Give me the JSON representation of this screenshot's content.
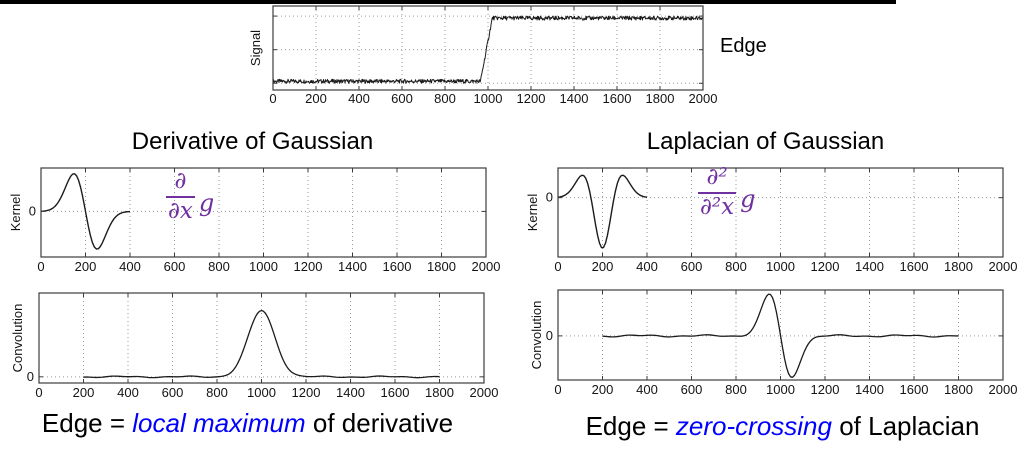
{
  "palette": {
    "curve": "#1c1c1c",
    "grid": "#9a9a9a",
    "frame": "#3c3c3c",
    "tick_text": "#141414",
    "formula": "#7030A0",
    "highlight": "#0000FF"
  },
  "top_rule": {
    "color": "#000000"
  },
  "signal_panel": {
    "edge_label": "Edge"
  },
  "titles": {
    "left": "Derivative of Gaussian",
    "right": "Laplacian of Gaussian"
  },
  "annotations": {
    "dog": {
      "numerator": "∂",
      "denominator": "∂x",
      "operand": "g",
      "color": "#7030A0"
    },
    "log": {
      "numerator": "∂²",
      "denominator": "∂²x",
      "operand": "g",
      "color": "#7030A0"
    }
  },
  "captions": {
    "left": {
      "prefix": "Edge = ",
      "highlight": "local maximum",
      "suffix": " of derivative",
      "highlight_color": "#0000FF"
    },
    "right": {
      "prefix": "Edge = ",
      "highlight": "zero-crossing",
      "suffix": " of Laplacian",
      "highlight_color": "#0000FF"
    }
  },
  "chart_data": [
    {
      "id": "signal",
      "type": "line",
      "title": "",
      "xlabel": "",
      "ylabel": "Signal",
      "xlim": [
        0,
        2000
      ],
      "xticks": [
        0,
        200,
        400,
        600,
        800,
        1000,
        1200,
        1400,
        1600,
        1800,
        2000
      ],
      "ylim": [
        -0.1,
        1.15
      ],
      "gridline_y_values": [
        0,
        0.5,
        1
      ],
      "ytick_labels": [],
      "grid": "dotted",
      "stroke": 1,
      "series": [
        {
          "name": "noisy step signal",
          "shape": "noisy_step",
          "low": 0.03,
          "high": 0.97,
          "edge_start": 965,
          "edge_end": 1020,
          "noise_amplitude": 0.03,
          "x_range": [
            0,
            2000
          ]
        }
      ],
      "key_points": {
        "edge_x": 1000,
        "low_level": 0.03,
        "high_level": 0.97
      }
    },
    {
      "id": "dog_kernel",
      "type": "line",
      "title": "Derivative of Gaussian",
      "xlabel": "",
      "ylabel": "Kernel",
      "xlim": [
        0,
        2000
      ],
      "xticks": [
        0,
        200,
        400,
        600,
        800,
        1000,
        1200,
        1400,
        1600,
        1800,
        2000
      ],
      "ylim": [
        -1.05,
        1.0
      ],
      "gridline_y_values": [
        0
      ],
      "ytick_labels": [
        "0"
      ],
      "grid": "dotted",
      "stroke": 1.4,
      "series": [
        {
          "name": "derivative of Gaussian kernel",
          "shape": "gaussian_derivative",
          "center": 200,
          "sigma": 52,
          "peak": 0.87,
          "ripple": 0,
          "x_range": [
            0,
            400
          ]
        }
      ],
      "key_points": {
        "max_x": 148,
        "zero_crossing_x": 200,
        "min_x": 252
      }
    },
    {
      "id": "log_kernel",
      "type": "line",
      "title": "Laplacian of Gaussian",
      "xlabel": "",
      "ylabel": "Kernel",
      "xlim": [
        0,
        2000
      ],
      "xticks": [
        0,
        200,
        400,
        600,
        800,
        1000,
        1200,
        1400,
        1600,
        1800,
        2000
      ],
      "ylim": [
        -1.0,
        0.5
      ],
      "gridline_y_values": [
        0
      ],
      "ytick_labels": [
        "0"
      ],
      "grid": "dotted",
      "stroke": 1.4,
      "series": [
        {
          "name": "Laplacian of Gaussian kernel",
          "shape": "neg_laplacian_of_gaussian",
          "center": 200,
          "sigma": 52,
          "trough": -0.85,
          "ripple": 0,
          "x_range": [
            0,
            400
          ]
        }
      ],
      "key_points": {
        "side_lobe_x": [
          110,
          290
        ],
        "trough_x": 200
      }
    },
    {
      "id": "dog_convolution",
      "type": "line",
      "title": "",
      "xlabel": "",
      "ylabel": "Convolution",
      "xlim": [
        0,
        2000
      ],
      "xticks": [
        0,
        200,
        400,
        600,
        800,
        1000,
        1200,
        1400,
        1600,
        1800,
        2000
      ],
      "ylim": [
        -0.07,
        0.95
      ],
      "gridline_y_values": [
        0
      ],
      "ytick_labels": [
        "0"
      ],
      "grid": "dotted",
      "stroke": 1.3,
      "series": [
        {
          "name": "signal convolved with derivative of Gaussian",
          "shape": "gaussian_bump",
          "center": 1000,
          "sigma": 60,
          "peak": 0.75,
          "ripple": 0.006,
          "x_range": [
            200,
            1800
          ]
        }
      ],
      "key_points": {
        "local_maximum_x": 1000,
        "peak_value": 0.75
      }
    },
    {
      "id": "log_convolution",
      "type": "line",
      "title": "",
      "xlabel": "",
      "ylabel": "Convolution",
      "xlim": [
        0,
        2000
      ],
      "xticks": [
        0,
        200,
        400,
        600,
        800,
        1000,
        1200,
        1400,
        1600,
        1800,
        2000
      ],
      "ylim": [
        -0.5,
        0.52
      ],
      "gridline_y_values": [
        0
      ],
      "ytick_labels": [
        "0"
      ],
      "grid": "dotted",
      "stroke": 1.3,
      "series": [
        {
          "name": "signal convolved with Laplacian of Gaussian",
          "shape": "gaussian_derivative",
          "center": 1000,
          "sigma": 50,
          "peak": 0.47,
          "ripple": 0.008,
          "x_range": [
            200,
            1800
          ]
        }
      ],
      "key_points": {
        "zero_crossing_x": 1000,
        "max_x": 950,
        "min_x": 1050
      }
    }
  ]
}
